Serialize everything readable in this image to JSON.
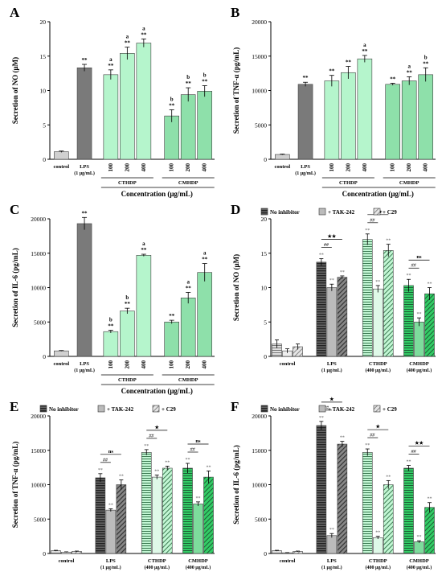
{
  "figure": {
    "colors": {
      "control": "#d0d0d0",
      "lps": "#7a7a7a",
      "cthdp": "#b5f5cc",
      "cmhdp": "#8ee0aa",
      "inhib_lps": "#4a4a4a",
      "inhib_cthdp": "#c2f7d4",
      "inhib_cmhdp": "#33cc66",
      "edge": "#404040"
    }
  },
  "chart_data": [
    {
      "panel": "A",
      "type": "bar",
      "ylabel": "Secretion of NO (μM)",
      "xlabel": "Concentration (μg/mL)",
      "ylim": [
        0,
        20
      ],
      "yticks": [
        "0",
        "5",
        "10",
        "15",
        "20"
      ],
      "categories": [
        "control",
        "LPS",
        "100",
        "200",
        "400",
        "100",
        "200",
        "400"
      ],
      "cat_sub": [
        "",
        "(1 μg/mL)",
        "",
        "",
        "",
        "",
        "",
        ""
      ],
      "values": [
        1.1,
        13.3,
        12.3,
        15.4,
        16.9,
        6.3,
        9.4,
        9.9
      ],
      "errors": [
        0.1,
        0.5,
        0.7,
        0.9,
        0.6,
        0.9,
        1.0,
        0.8
      ],
      "sig": [
        "",
        "**",
        "a\n**",
        "a\n**",
        "a\n**",
        "b\n**",
        "b\n**",
        "b\n**"
      ],
      "groups": [
        {
          "label": "CTHDP",
          "from": 2,
          "to": 4
        },
        {
          "label": "CMHDP",
          "from": 5,
          "to": 7
        }
      ],
      "color_keys": [
        "control",
        "lps",
        "cthdp",
        "cthdp",
        "cthdp",
        "cmhdp",
        "cmhdp",
        "cmhdp"
      ]
    },
    {
      "panel": "B",
      "type": "bar",
      "ylabel": "Secretion of TNF-α (pg/mL)",
      "xlabel": "Concentration (μg/mL)",
      "ylim": [
        0,
        20000
      ],
      "yticks": [
        "0",
        "5000",
        "10000",
        "15000",
        "20000"
      ],
      "categories": [
        "control",
        "LPS",
        "100",
        "200",
        "400",
        "100",
        "200",
        "400"
      ],
      "cat_sub": [
        "",
        "(1 μg/mL)",
        "",
        "",
        "",
        "",
        "",
        ""
      ],
      "values": [
        700,
        10900,
        11400,
        12600,
        14600,
        10900,
        11400,
        12300
      ],
      "errors": [
        60,
        300,
        800,
        900,
        500,
        150,
        600,
        1000
      ],
      "sig": [
        "",
        "**",
        "**",
        "**",
        "a\n**",
        "**",
        "a\n**",
        "b\n**"
      ],
      "groups": [
        {
          "label": "CTHDP",
          "from": 2,
          "to": 4
        },
        {
          "label": "CMHDP",
          "from": 5,
          "to": 7
        }
      ],
      "color_keys": [
        "control",
        "lps",
        "cthdp",
        "cthdp",
        "cthdp",
        "cmhdp",
        "cmhdp",
        "cmhdp"
      ]
    },
    {
      "panel": "C",
      "type": "bar",
      "ylabel": "Secretion of IL-6 (pg/mL)",
      "xlabel": "Concentration (μg/mL)",
      "ylim": [
        0,
        20000
      ],
      "yticks": [
        "0",
        "5000",
        "10000",
        "15000",
        "20000"
      ],
      "categories": [
        "control",
        "LPS",
        "100",
        "200",
        "400",
        "100",
        "200",
        "400"
      ],
      "cat_sub": [
        "",
        "(1 μg/mL)",
        "",
        "",
        "",
        "",
        "",
        ""
      ],
      "values": [
        800,
        19300,
        3600,
        6600,
        14700,
        5000,
        8500,
        12200
      ],
      "errors": [
        50,
        900,
        200,
        400,
        150,
        250,
        800,
        1300
      ],
      "sig": [
        "",
        "**",
        "b\n**",
        "b\n**",
        "a\n**",
        "**",
        "a\n**",
        "a\n**"
      ],
      "groups": [
        {
          "label": "CTHDP",
          "from": 2,
          "to": 4
        },
        {
          "label": "CMHDP",
          "from": 5,
          "to": 7
        }
      ],
      "color_keys": [
        "control",
        "lps",
        "cthdp",
        "cthdp",
        "cthdp",
        "cmhdp",
        "cmhdp",
        "cmhdp"
      ]
    },
    {
      "panel": "D",
      "type": "bar",
      "ylabel": "Secretion of NO (μM)",
      "ylim": [
        0,
        20
      ],
      "yticks": [
        "0",
        "5",
        "10",
        "15",
        "20"
      ],
      "legend": [
        "No inhibitor",
        "+ TAK-242",
        "+ C29"
      ],
      "categories": [
        "control",
        "LPS",
        "CTHDP",
        "CMHDP"
      ],
      "cat_sub": [
        "",
        "(1 μg/mL)",
        "(400 μg/mL)",
        "(400 μg/mL)"
      ],
      "series": [
        {
          "name": "No inhibitor",
          "values": [
            1.8,
            13.7,
            17.0,
            10.3
          ],
          "errors": [
            0.6,
            0.5,
            0.8,
            0.9
          ]
        },
        {
          "name": "+ TAK-242",
          "values": [
            0.8,
            10.0,
            9.8,
            5.0
          ],
          "errors": [
            0.3,
            0.5,
            0.5,
            0.6
          ]
        },
        {
          "name": "+ C29",
          "values": [
            1.4,
            11.5,
            15.4,
            9.1
          ],
          "errors": [
            0.4,
            0.2,
            0.9,
            0.9
          ]
        }
      ],
      "sig_above": [
        [
          "",
          "",
          ""
        ],
        [
          "**",
          "**",
          "**"
        ],
        [
          "**",
          "**",
          "**"
        ],
        [
          "**",
          "**",
          "**"
        ]
      ],
      "brackets": [
        {
          "group": 1,
          "label": "★★",
          "sub": "##"
        },
        {
          "group": 2,
          "label": "★★",
          "sub": "##"
        },
        {
          "group": 3,
          "label": "ns",
          "sub": "##"
        }
      ]
    },
    {
      "panel": "E",
      "type": "bar",
      "ylabel": "Secretion of TNF-α (pg/mL)",
      "ylim": [
        0,
        20000
      ],
      "yticks": [
        "0",
        "5000",
        "10000",
        "15000",
        "20000"
      ],
      "legend": [
        "No inhibitor",
        "+ TAK-242",
        "+ C29"
      ],
      "categories": [
        "control",
        "LPS",
        "CTHDP",
        "CMHDP"
      ],
      "cat_sub": [
        "",
        "(1 μg/mL)",
        "(400 μg/mL)",
        "(400 μg/mL)"
      ],
      "series": [
        {
          "name": "No inhibitor",
          "values": [
            400,
            11000,
            14700,
            12400
          ],
          "errors": [
            60,
            600,
            400,
            700
          ]
        },
        {
          "name": "+ TAK-242",
          "values": [
            200,
            6300,
            11100,
            7200
          ],
          "errors": [
            40,
            200,
            300,
            300
          ]
        },
        {
          "name": "+ C29",
          "values": [
            300,
            10000,
            12400,
            11100
          ],
          "errors": [
            50,
            700,
            300,
            900
          ]
        }
      ],
      "sig_above": [
        [
          "",
          "",
          ""
        ],
        [
          "**",
          "**",
          "**"
        ],
        [
          "**",
          "**",
          "**"
        ],
        [
          "**",
          "**",
          "**"
        ]
      ],
      "brackets": [
        {
          "group": 1,
          "label": "ns",
          "sub": "##"
        },
        {
          "group": 2,
          "label": "★",
          "sub": "##"
        },
        {
          "group": 3,
          "label": "ns",
          "sub": "##"
        }
      ]
    },
    {
      "panel": "F",
      "type": "bar",
      "ylabel": "Secretion of IL-6 (pg/mL)",
      "ylim": [
        0,
        20000
      ],
      "yticks": [
        "0",
        "5000",
        "10000",
        "15000",
        "20000"
      ],
      "legend": [
        "No inhibitor",
        "+ TAK-242",
        "+ C29"
      ],
      "categories": [
        "control",
        "LPS",
        "CTHDP",
        "CMHDP"
      ],
      "cat_sub": [
        "",
        "(1 μg/mL)",
        "(400 μg/mL)",
        "(400 μg/mL)"
      ],
      "series": [
        {
          "name": "No inhibitor",
          "values": [
            400,
            18600,
            14700,
            12400
          ],
          "errors": [
            60,
            600,
            500,
            400
          ]
        },
        {
          "name": "+ TAK-242",
          "values": [
            100,
            2600,
            2300,
            1700
          ],
          "errors": [
            30,
            300,
            200,
            150
          ]
        },
        {
          "name": "+ C29",
          "values": [
            300,
            15900,
            10000,
            6700
          ],
          "errors": [
            50,
            400,
            600,
            700
          ]
        }
      ],
      "sig_above": [
        [
          "",
          "",
          ""
        ],
        [
          "**",
          "**",
          "**"
        ],
        [
          "**",
          "**",
          "**"
        ],
        [
          "**",
          "**",
          "**"
        ]
      ],
      "brackets": [
        {
          "group": 1,
          "label": "★",
          "sub": "##"
        },
        {
          "group": 2,
          "label": "★",
          "sub": "##"
        },
        {
          "group": 3,
          "label": "★★",
          "sub": "##"
        }
      ]
    }
  ]
}
